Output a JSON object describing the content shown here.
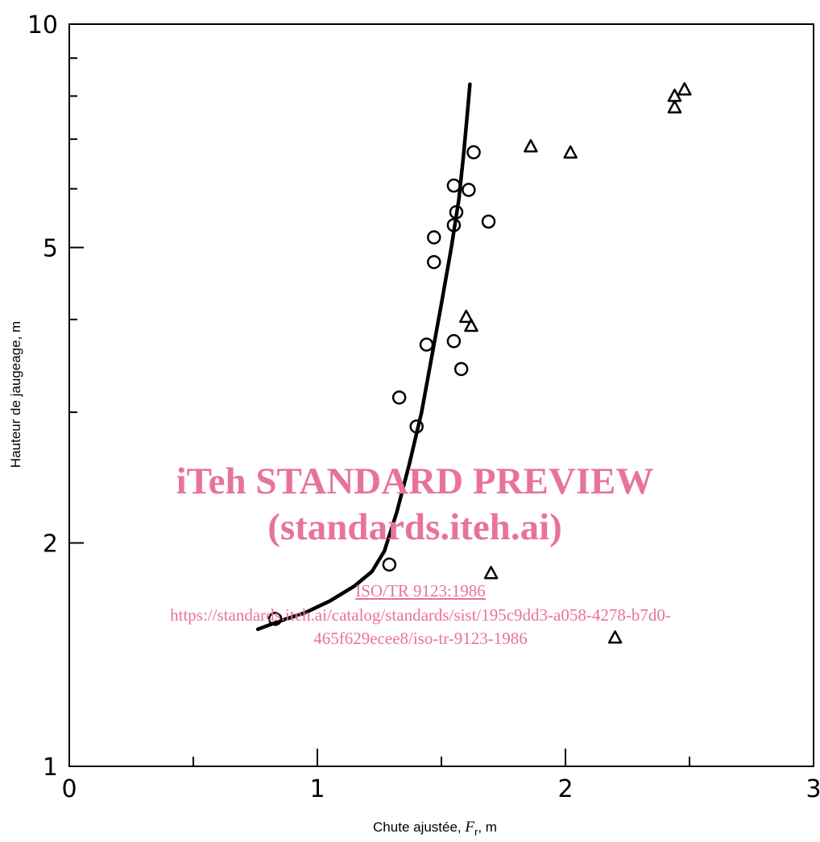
{
  "chart_data": {
    "type": "scatter",
    "xlabel": "Chute ajustée, F_r, m",
    "xlabel_parts": {
      "before": "Chute ajustée, ",
      "var": "F",
      "sub": "r",
      "after": ", m"
    },
    "ylabel": "Hauteur de jaugeage, m",
    "xlim": [
      0,
      3
    ],
    "ylim": [
      1,
      10
    ],
    "y_scale": "log",
    "grid": false,
    "x_ticks": [
      0,
      0.5,
      1,
      1.5,
      2,
      2.5,
      3
    ],
    "x_tick_labels": [
      "0",
      "1",
      "2",
      "3"
    ],
    "x_tick_label_values": [
      0,
      1,
      2,
      3
    ],
    "y_ticks": [
      1,
      2,
      3,
      4,
      5,
      6,
      7,
      8,
      9,
      10
    ],
    "y_tick_labels": [
      "1",
      "2",
      "5",
      "10"
    ],
    "y_tick_label_values": [
      1,
      2,
      5,
      10
    ],
    "series": [
      {
        "marker": "circle",
        "points": [
          [
            0.83,
            1.58
          ],
          [
            1.29,
            1.87
          ],
          [
            1.33,
            3.14
          ],
          [
            1.4,
            2.87
          ],
          [
            1.44,
            3.7
          ],
          [
            1.47,
            4.78
          ],
          [
            1.47,
            5.16
          ],
          [
            1.55,
            3.74
          ],
          [
            1.55,
            5.36
          ],
          [
            1.55,
            6.06
          ],
          [
            1.56,
            5.58
          ],
          [
            1.58,
            3.43
          ],
          [
            1.61,
            5.98
          ],
          [
            1.63,
            6.72
          ],
          [
            1.69,
            5.42
          ]
        ]
      },
      {
        "marker": "triangle",
        "points": [
          [
            1.6,
            4.03
          ],
          [
            1.62,
            3.92
          ],
          [
            1.7,
            1.82
          ],
          [
            1.86,
            6.84
          ],
          [
            2.02,
            6.71
          ],
          [
            2.2,
            1.49
          ],
          [
            2.44,
            7.72
          ],
          [
            2.44,
            8.0
          ],
          [
            2.48,
            8.16
          ]
        ]
      },
      {
        "marker": "line",
        "points": [
          [
            0.76,
            1.53
          ],
          [
            0.85,
            1.57
          ],
          [
            0.95,
            1.61
          ],
          [
            1.05,
            1.67
          ],
          [
            1.15,
            1.75
          ],
          [
            1.22,
            1.83
          ],
          [
            1.27,
            1.95
          ],
          [
            1.32,
            2.2
          ],
          [
            1.37,
            2.55
          ],
          [
            1.42,
            3.0
          ],
          [
            1.46,
            3.55
          ],
          [
            1.5,
            4.2
          ],
          [
            1.54,
            5.0
          ],
          [
            1.57,
            5.8
          ],
          [
            1.59,
            6.7
          ],
          [
            1.605,
            7.6
          ],
          [
            1.615,
            8.3
          ]
        ]
      }
    ]
  },
  "watermark": {
    "line1": "iTeh STANDARD PREVIEW",
    "line2": "(standards.iteh.ai)",
    "line3": "ISO/TR 9123:1986",
    "line4": "https://standards.iteh.ai/catalog/standards/sist/195c9dd3-a058-4278-b7d0-",
    "line5": "465f629ecee8/iso-tr-9123-1986"
  }
}
